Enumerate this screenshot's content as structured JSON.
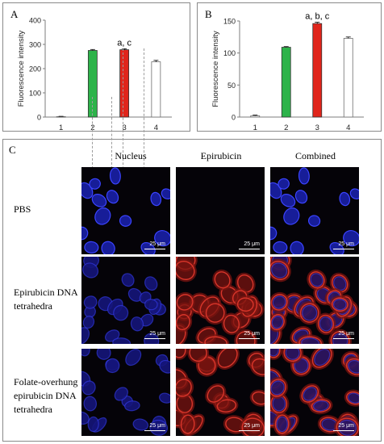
{
  "panels": {
    "a_letter": "A",
    "b_letter": "B",
    "c_letter": "C"
  },
  "chart_data": [
    {
      "type": "bar",
      "panel": "A",
      "ylabel": "Fluorescence intensity",
      "xlabel": "",
      "categories": [
        "1",
        "2",
        "3",
        "4"
      ],
      "values": [
        2,
        275,
        278,
        228
      ],
      "errors": [
        1,
        4,
        4,
        6
      ],
      "ylim": [
        0,
        400
      ],
      "yticks": [
        0,
        100,
        200,
        300,
        400
      ],
      "annotations": [
        {
          "category": "3",
          "text": "a, c"
        }
      ],
      "colors": [
        "#ffffff",
        "#2db34a",
        "#e0251b",
        "#ffffff"
      ],
      "grid": false
    },
    {
      "type": "bar",
      "panel": "B",
      "ylabel": "Fluorescence intensity",
      "xlabel": "",
      "categories": [
        "1",
        "2",
        "3",
        "4"
      ],
      "values": [
        2,
        109,
        146,
        123
      ],
      "errors": [
        1,
        1,
        2,
        2
      ],
      "ylim": [
        0,
        150
      ],
      "yticks": [
        0,
        50,
        100,
        150
      ],
      "annotations": [
        {
          "category": "3",
          "text": "a, b, c"
        }
      ],
      "colors": [
        "#ffffff",
        "#2db34a",
        "#e0251b",
        "#ffffff"
      ],
      "grid": false
    }
  ],
  "micrographs": {
    "columns": [
      "Nucleus",
      "Epirubicin",
      "Combined"
    ],
    "rows": [
      {
        "label_lines": [
          "PBS"
        ]
      },
      {
        "label_lines": [
          "Epirubicin DNA",
          "tetrahedra"
        ]
      },
      {
        "label_lines": [
          "Folate-overhung",
          "epirubicin DNA",
          "tetrahedra"
        ]
      }
    ],
    "scale_label": "25 μm"
  }
}
